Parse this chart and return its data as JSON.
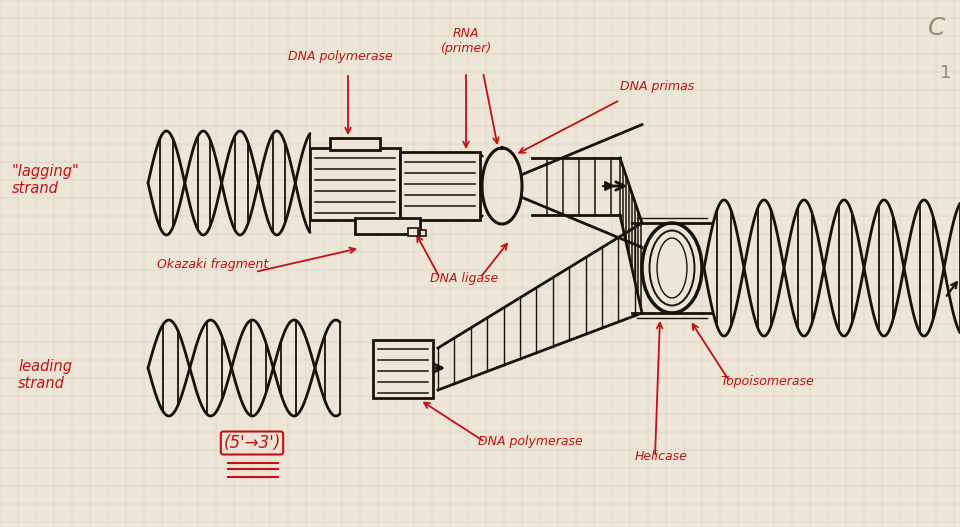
{
  "bg_color": "#ede6d8",
  "grid_color": "#d4cabb",
  "ink_color": "#1a1208",
  "red_color": "#c41010",
  "figsize": [
    9.6,
    5.27
  ],
  "dpi": 100,
  "labels": {
    "lagging_strand": "\"lagging\"\nstrand",
    "leading_strand": "leading\nstrand",
    "dna_polymerase_top": "DNA polymerase",
    "rna_primer": "RNA\n(primer)",
    "dna_primas": "DNA primas",
    "okazaki": "Okazaki fragment",
    "dna_ligase": "DNA ligase",
    "topoisomerase": "Topoisomerase",
    "dna_polymerase_bot": "DNA polymerase",
    "helicase": "Helicase",
    "direction": "(5'→3')"
  }
}
